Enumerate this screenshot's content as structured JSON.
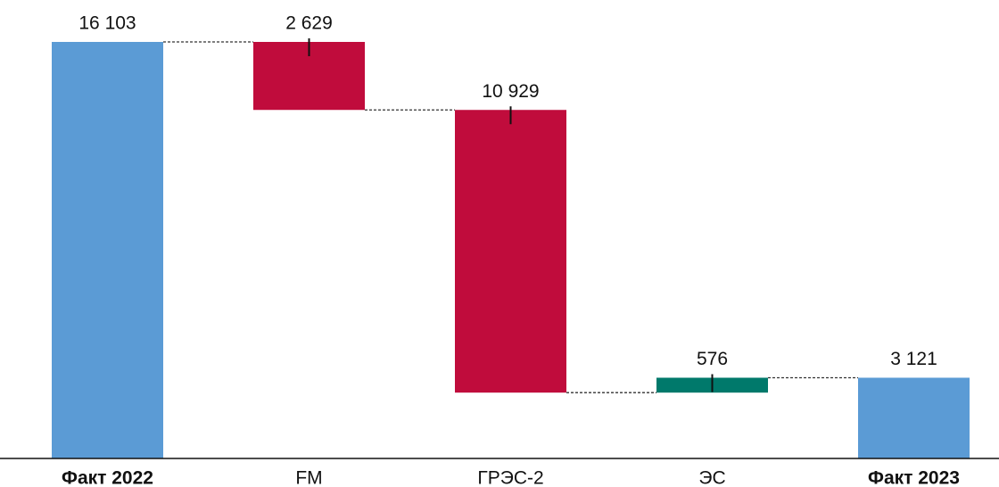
{
  "chart_data": {
    "type": "waterfall",
    "categories": [
      "Факт 2022",
      "FM",
      "ГРЭС-2",
      "ЭС",
      "Факт 2023"
    ],
    "values": [
      16103,
      -2629,
      -10929,
      576,
      3121
    ],
    "value_labels": [
      "16 103",
      "2 629",
      "10 929",
      "576",
      "3 121"
    ],
    "colors": [
      "#5b9bd5",
      "#c00c3c",
      "#c00c3c",
      "#00796b",
      "#5b9bd5"
    ]
  }
}
